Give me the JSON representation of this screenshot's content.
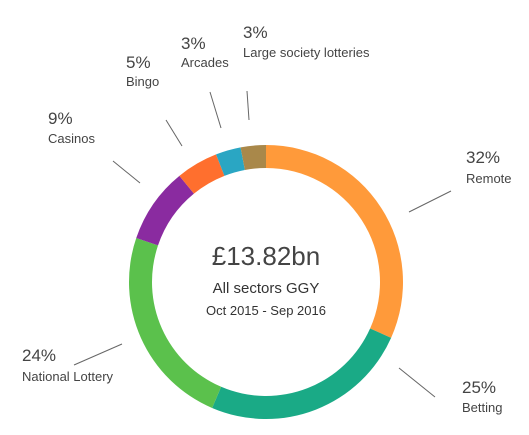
{
  "chart_data": {
    "type": "pie",
    "variant": "donut",
    "center": {
      "value": "£13.82bn",
      "subtitle": "All sectors GGY",
      "period": "Oct 2015 - Sep 2016"
    },
    "slices": [
      {
        "label": "Remote",
        "value": 32,
        "display": "32%",
        "color": "#FF9A3A"
      },
      {
        "label": "Betting",
        "value": 25,
        "display": "25%",
        "color": "#1AAA86"
      },
      {
        "label": "National Lottery",
        "value": 24,
        "display": "24%",
        "color": "#5BC14C"
      },
      {
        "label": "Casinos",
        "value": 9,
        "display": "9%",
        "color": "#8A2BA0"
      },
      {
        "label": "Bingo",
        "value": 5,
        "display": "5%",
        "color": "#FF6F2E"
      },
      {
        "label": "Arcades",
        "value": 3,
        "display": "3%",
        "color": "#2AA6C3"
      },
      {
        "label": "Large society lotteries",
        "value": 3,
        "display": "3%",
        "color": "#A9884A"
      }
    ]
  }
}
